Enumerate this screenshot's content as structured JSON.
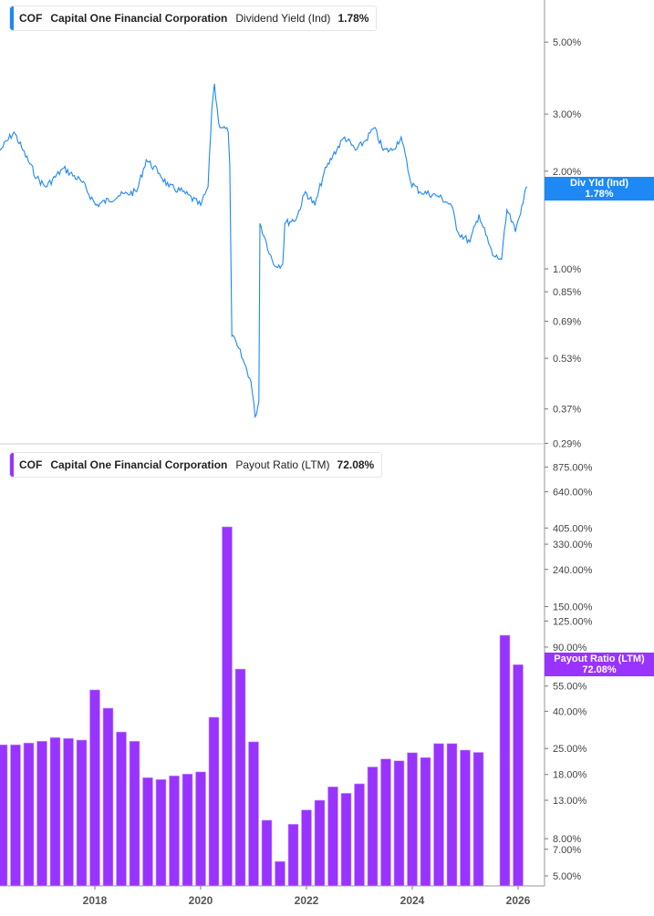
{
  "chart_data": [
    {
      "type": "line",
      "ticker": "COF",
      "company": "Capital One Financial Corporation",
      "metric": "Dividend Yield (Ind)",
      "current_value": "1.78%",
      "tag_label": "Div Yld (Ind)",
      "color": "#1e88f5",
      "y_scale": "log",
      "ylim": [
        0.27,
        6.2
      ],
      "y_ticks": [
        "5.00%",
        "3.00%",
        "2.00%",
        "1.00%",
        "0.85%",
        "0.69%",
        "0.53%",
        "0.37%",
        "0.29%"
      ],
      "y_tick_values": [
        5,
        3,
        2,
        1,
        0.85,
        0.69,
        0.53,
        0.37,
        0.29
      ],
      "x": [
        2016.21,
        2016.47,
        2016.64,
        2016.9,
        2017.07,
        2017.41,
        2017.76,
        2018.02,
        2018.45,
        2018.79,
        2018.97,
        2019.22,
        2019.4,
        2019.66,
        2020.0,
        2020.14,
        2020.21,
        2020.26,
        2020.34,
        2020.52,
        2020.55,
        2020.59,
        2020.69,
        2020.83,
        2020.95,
        2021.03,
        2021.1,
        2021.12,
        2021.24,
        2021.38,
        2021.55,
        2021.59,
        2021.81,
        2021.98,
        2022.16,
        2022.33,
        2022.5,
        2022.72,
        2022.93,
        2023.1,
        2023.28,
        2023.45,
        2023.62,
        2023.79,
        2023.97,
        2024.14,
        2024.48,
        2024.74,
        2024.86,
        2025.09,
        2025.26,
        2025.52,
        2025.69,
        2025.79,
        2025.95,
        2026.07,
        2026.17
      ],
      "y": [
        2.32,
        2.64,
        2.32,
        1.91,
        1.79,
        2.04,
        1.85,
        1.57,
        1.68,
        1.73,
        2.17,
        1.97,
        1.79,
        1.73,
        1.57,
        1.79,
        3.1,
        3.72,
        2.81,
        2.64,
        2.1,
        0.62,
        0.58,
        0.51,
        0.45,
        0.35,
        0.39,
        1.38,
        1.21,
        1.03,
        1.03,
        1.38,
        1.43,
        1.73,
        1.57,
        1.97,
        2.24,
        2.55,
        2.32,
        2.47,
        2.72,
        2.32,
        2.32,
        2.55,
        1.85,
        1.73,
        1.68,
        1.57,
        1.3,
        1.21,
        1.47,
        1.1,
        1.07,
        1.52,
        1.3,
        1.57,
        1.79
      ]
    },
    {
      "type": "bar",
      "ticker": "COF",
      "company": "Capital One Financial Corporation",
      "metric": "Payout Ratio (LTM)",
      "current_value": "72.08%",
      "tag_label": "Payout Ratio (LTM)",
      "color": "#9933ff",
      "y_scale": "log",
      "ylim": [
        4.5,
        1000
      ],
      "y_ticks": [
        "875.00%",
        "640.00%",
        "405.00%",
        "330.00%",
        "240.00%",
        "150.00%",
        "125.00%",
        "90.00%",
        "55.00%",
        "40.00%",
        "25.00%",
        "18.00%",
        "13.00%",
        "8.00%",
        "7.00%",
        "5.00%"
      ],
      "y_tick_values": [
        875,
        640,
        405,
        330,
        240,
        150,
        125,
        90,
        55,
        40,
        25,
        18,
        13,
        8,
        7,
        5
      ],
      "x_ticks": [
        "2018",
        "2020",
        "2022",
        "2024",
        "2026"
      ],
      "x_tick_values": [
        2018,
        2020,
        2022,
        2024,
        2026
      ],
      "x": [
        2016.25,
        2016.5,
        2016.75,
        2017.0,
        2017.25,
        2017.5,
        2017.75,
        2018.0,
        2018.25,
        2018.5,
        2018.75,
        2019.0,
        2019.25,
        2019.5,
        2019.75,
        2020.0,
        2020.25,
        2020.5,
        2020.75,
        2021.0,
        2021.25,
        2021.5,
        2021.75,
        2022.0,
        2022.25,
        2022.5,
        2022.75,
        2023.0,
        2023.25,
        2023.5,
        2023.75,
        2024.0,
        2024.25,
        2024.5,
        2024.75,
        2025.0,
        2025.25,
        2025.75,
        2026.0
      ],
      "values": [
        26.2,
        26.2,
        26.8,
        27.4,
        28.7,
        28.4,
        27.8,
        52.4,
        41.6,
        30.8,
        27.4,
        17.3,
        16.9,
        17.7,
        18.1,
        18.6,
        37.1,
        411,
        68.2,
        27.2,
        10.1,
        6.0,
        9.6,
        11.5,
        13.0,
        15.4,
        14.2,
        16.0,
        19.8,
        21.9,
        21.4,
        23.7,
        22.3,
        26.6,
        26.6,
        24.5,
        23.8,
        104.5,
        72.08
      ]
    }
  ]
}
